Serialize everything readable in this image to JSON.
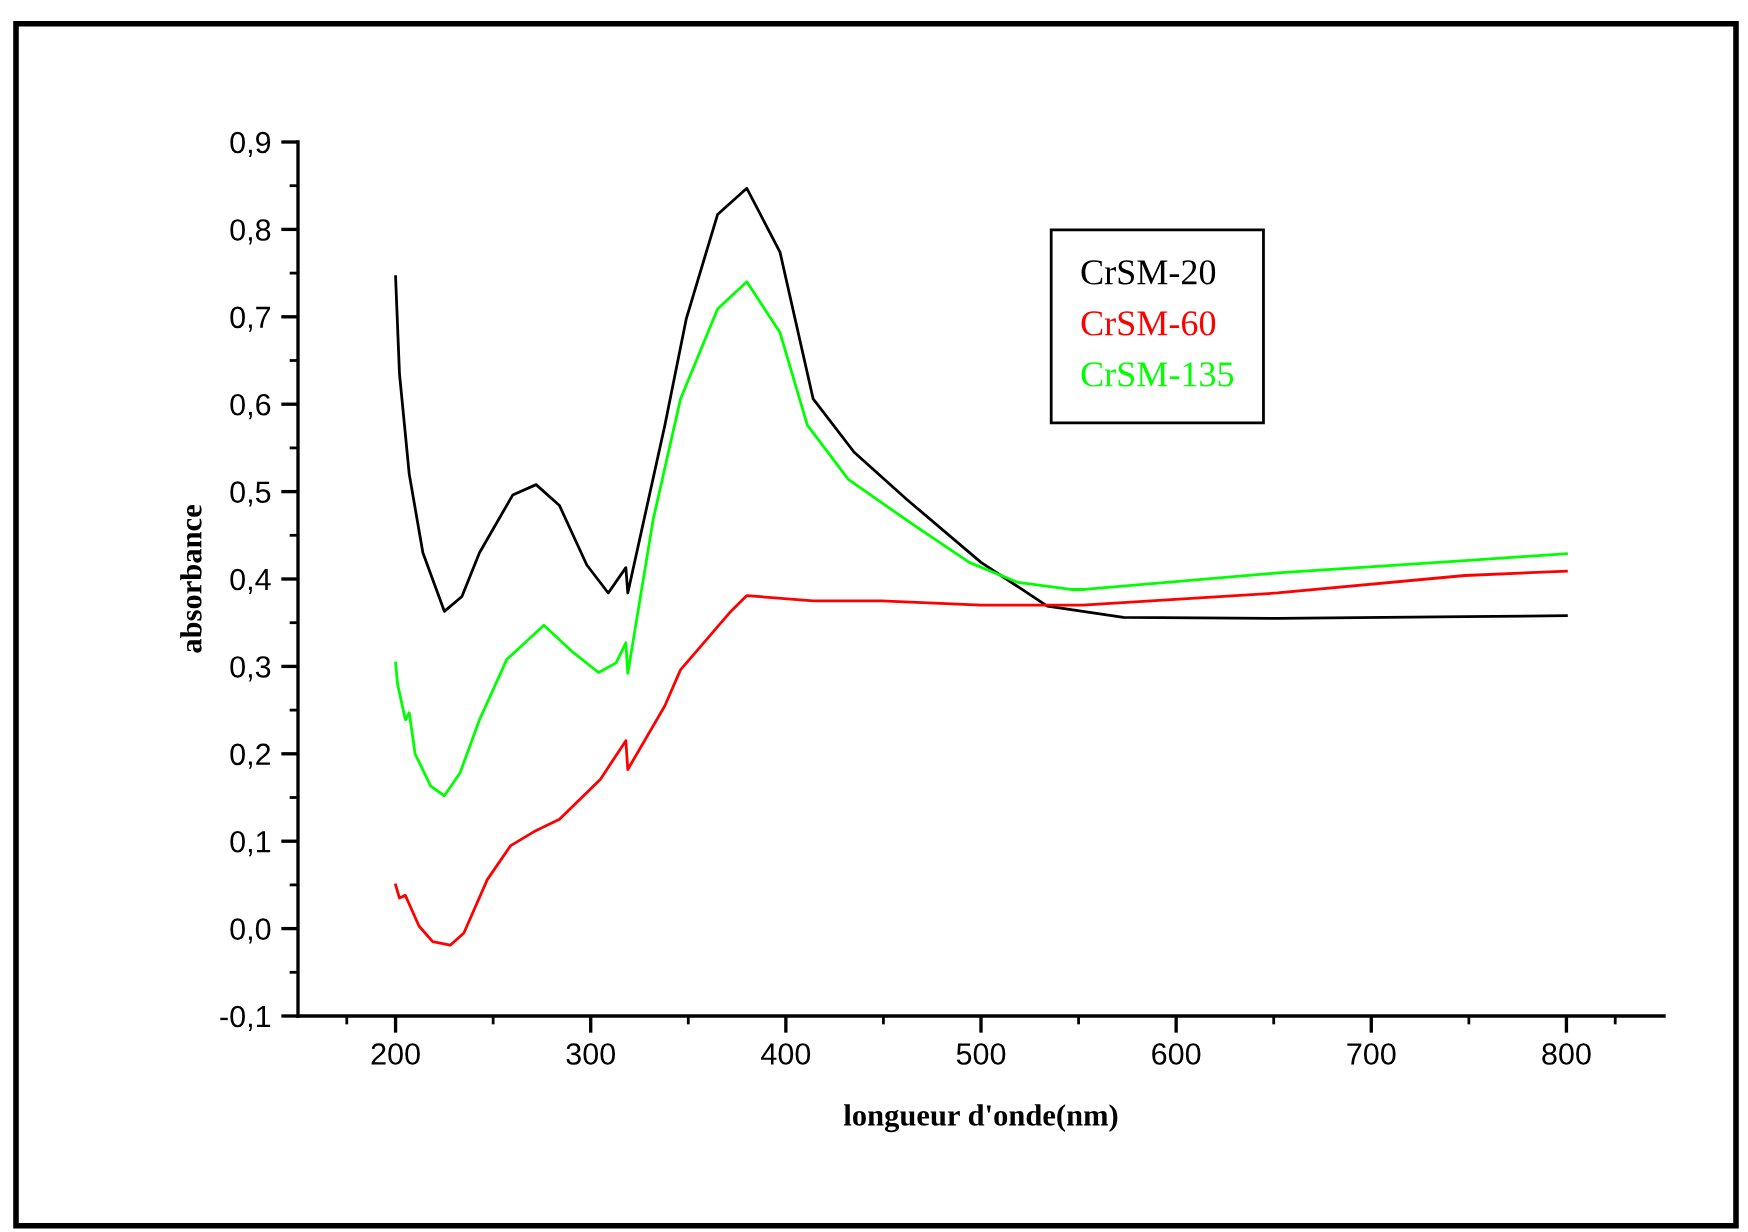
{
  "chart_data": {
    "type": "line",
    "xlabel": "longueur d'onde(nm)",
    "ylabel": "absorbance",
    "xlim": [
      150,
      850
    ],
    "xticks": [
      200,
      300,
      400,
      500,
      600,
      700,
      800
    ],
    "ylim": [
      -0.1,
      0.9
    ],
    "yticks": [
      {
        "value": -0.1,
        "label": "-0,1"
      },
      {
        "value": 0.0,
        "label": "0,0"
      },
      {
        "value": 0.1,
        "label": "0,1"
      },
      {
        "value": 0.2,
        "label": "0,2"
      },
      {
        "value": 0.3,
        "label": "0,3"
      },
      {
        "value": 0.4,
        "label": "0,4"
      },
      {
        "value": 0.5,
        "label": "0,5"
      },
      {
        "value": 0.6,
        "label": "0,6"
      },
      {
        "value": 0.7,
        "label": "0,7"
      },
      {
        "value": 0.8,
        "label": "0,8"
      },
      {
        "value": 0.9,
        "label": "0,9"
      }
    ],
    "grid": false,
    "legend": "top right",
    "marker": "none",
    "line_style": "solid",
    "series": [
      {
        "name": "CrSM-20",
        "color": "#000000",
        "x": [
          200,
          202,
          207,
          214,
          225,
          234,
          243,
          260,
          272,
          284,
          298,
          309,
          318,
          319,
          338,
          349,
          365,
          380,
          397,
          414,
          435,
          462,
          500,
          534,
          573,
          652,
          748,
          800
        ],
        "values": [
          0.746,
          0.635,
          0.52,
          0.43,
          0.363,
          0.38,
          0.43,
          0.496,
          0.508,
          0.484,
          0.416,
          0.384,
          0.413,
          0.384,
          0.576,
          0.698,
          0.817,
          0.847,
          0.774,
          0.606,
          0.545,
          0.491,
          0.419,
          0.369,
          0.356,
          0.355,
          0.357,
          0.358
        ]
      },
      {
        "name": "CrSM-60",
        "color": "#ff0000",
        "x": [
          200,
          202,
          205,
          212,
          219,
          228,
          235,
          247,
          259,
          271,
          284,
          305,
          318,
          319,
          338,
          346,
          371,
          380,
          414,
          449,
          500,
          552,
          652,
          748,
          800
        ],
        "values": [
          0.05,
          0.035,
          0.038,
          0.003,
          -0.015,
          -0.019,
          -0.005,
          0.056,
          0.095,
          0.111,
          0.125,
          0.171,
          0.215,
          0.182,
          0.255,
          0.296,
          0.361,
          0.381,
          0.375,
          0.375,
          0.37,
          0.37,
          0.384,
          0.404,
          0.409
        ]
      },
      {
        "name": "CrSM-135",
        "color": "#00ff00",
        "x": [
          200,
          201,
          205,
          207,
          210,
          218,
          225,
          233,
          243,
          257,
          276,
          291,
          304,
          313,
          318,
          319,
          332,
          346,
          365,
          380,
          397,
          411,
          432,
          466,
          494,
          519,
          546,
          553,
          652,
          748,
          800
        ],
        "values": [
          0.304,
          0.28,
          0.239,
          0.247,
          0.2,
          0.163,
          0.152,
          0.178,
          0.239,
          0.308,
          0.347,
          0.316,
          0.293,
          0.304,
          0.327,
          0.292,
          0.468,
          0.606,
          0.709,
          0.74,
          0.682,
          0.576,
          0.514,
          0.461,
          0.419,
          0.396,
          0.388,
          0.388,
          0.407,
          0.421,
          0.429
        ]
      }
    ]
  }
}
